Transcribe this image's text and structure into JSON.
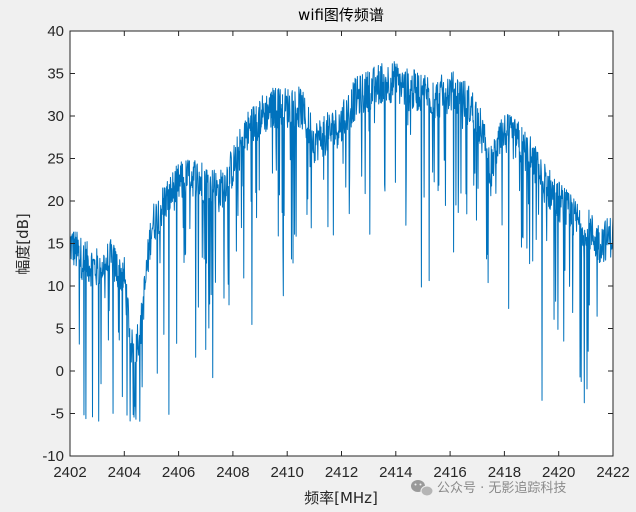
{
  "chart_data": {
    "type": "line",
    "title": "wifi图传频谱",
    "xlabel": "频率[MHz]",
    "ylabel": "幅度[dB]",
    "xlim": [
      2402,
      2422
    ],
    "ylim": [
      -10,
      40
    ],
    "xticks": [
      2402,
      2404,
      2406,
      2408,
      2410,
      2412,
      2414,
      2416,
      2418,
      2420,
      2422
    ],
    "yticks": [
      -10,
      -5,
      0,
      5,
      10,
      15,
      20,
      25,
      30,
      35,
      40
    ],
    "grid": false,
    "line_color": "#0072BD",
    "series": [
      {
        "x": [
          2402.0,
          2402.5,
          2403.0,
          2403.5,
          2404.0,
          2404.3,
          2404.6,
          2405.0,
          2405.5,
          2406.0,
          2406.5,
          2407.0,
          2407.5,
          2408.0,
          2408.5,
          2409.0,
          2409.5,
          2410.0,
          2410.5,
          2411.0,
          2411.5,
          2412.0,
          2412.5,
          2413.0,
          2413.5,
          2414.0,
          2414.5,
          2415.0,
          2415.5,
          2416.0,
          2416.5,
          2417.0,
          2417.5,
          2418.0,
          2418.5,
          2419.0,
          2419.5,
          2420.0,
          2420.5,
          2421.0,
          2421.5,
          2422.0
        ],
        "y": [
          15,
          13,
          12,
          13,
          11,
          2,
          5,
          17,
          20,
          22,
          23,
          22,
          21,
          24,
          28,
          30,
          31,
          31,
          31,
          27,
          28,
          29,
          32,
          33,
          34,
          34,
          33,
          33,
          32,
          33,
          32,
          30,
          24,
          28,
          27,
          25,
          22,
          20,
          18,
          17,
          15,
          16
        ]
      }
    ]
  },
  "watermark": {
    "icon": "wechat-logo-icon",
    "text": "公众号 · 无影追踪科技"
  }
}
